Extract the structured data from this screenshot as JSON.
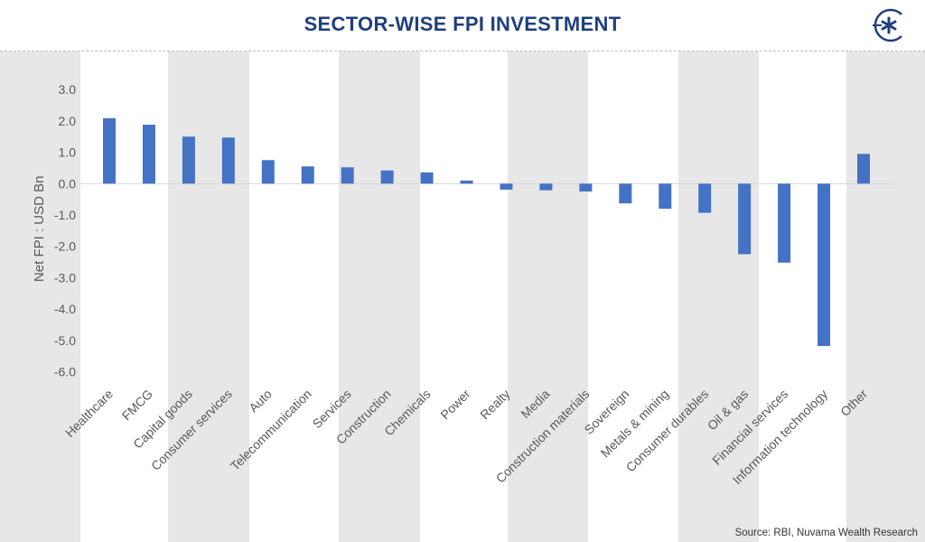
{
  "header": {
    "title": "SECTOR-WISE FPI INVESTMENT"
  },
  "source": "Source: RBI, Nuvama Wealth Research",
  "colors": {
    "bar": "#4472c4",
    "title": "#1f3f7f",
    "band": "#e7e7e7"
  },
  "chart_data": {
    "type": "bar",
    "title": "SECTOR-WISE FPI INVESTMENT",
    "xlabel": "",
    "ylabel": "Net FPI : USD Bn",
    "ylim": [
      -6.0,
      3.0
    ],
    "yticks": [
      "3.0",
      "2.0",
      "1.0",
      "0.0",
      "-1.0",
      "-2.0",
      "-3.0",
      "-4.0",
      "-5.0",
      "-6.0"
    ],
    "grid": false,
    "categories": [
      "Healthcare",
      "FMCG",
      "Capital goods",
      "Consumer services",
      "Auto",
      "Telecommunication",
      "Services",
      "Construction",
      "Chemicals",
      "Power",
      "Realty",
      "Media",
      "Construction  materials",
      "Sovereign",
      "Metals & mining",
      "Consumer durables",
      "Oil & gas",
      "Financial services",
      "Information  technology",
      "Other"
    ],
    "values": [
      2.09,
      1.88,
      1.5,
      1.47,
      0.75,
      0.55,
      0.52,
      0.42,
      0.36,
      0.1,
      -0.19,
      -0.21,
      -0.25,
      -0.63,
      -0.8,
      -0.93,
      -2.25,
      -2.52,
      -5.18,
      0.95
    ]
  }
}
